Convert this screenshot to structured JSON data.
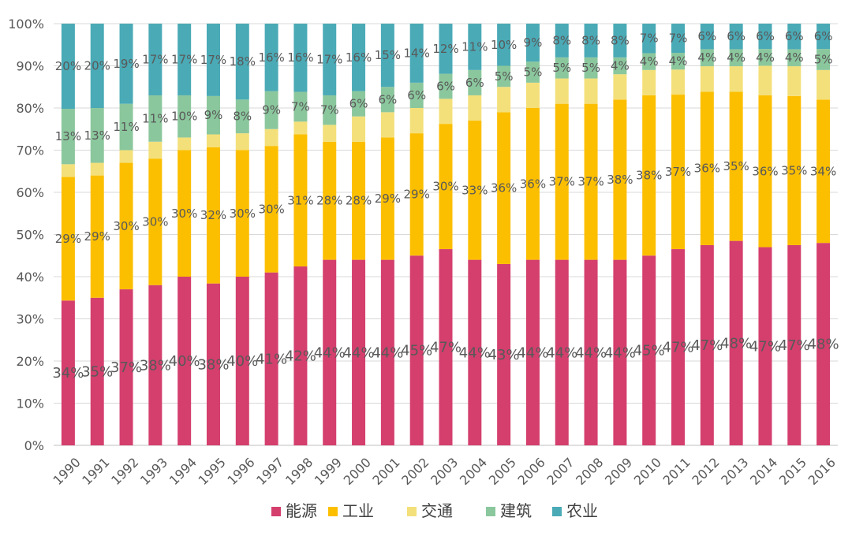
{
  "chart_data": {
    "type": "bar",
    "stacked": true,
    "percent_stacked": true,
    "categories": [
      "1990",
      "1991",
      "1992",
      "1993",
      "1994",
      "1995",
      "1996",
      "1997",
      "1998",
      "1999",
      "2000",
      "2001",
      "2002",
      "2003",
      "2004",
      "2005",
      "2006",
      "2007",
      "2008",
      "2009",
      "2010",
      "2011",
      "2012",
      "2013",
      "2014",
      "2015",
      "2016"
    ],
    "series": [
      {
        "name": "能源",
        "color": "#d43f6e",
        "values": [
          34,
          35,
          37,
          38,
          40,
          38,
          40,
          41,
          42,
          44,
          44,
          44,
          45,
          47,
          44,
          43,
          44,
          44,
          44,
          44,
          45,
          47,
          47,
          48,
          47,
          47,
          48
        ],
        "labels": [
          "34%",
          "35%",
          "37%",
          "38%",
          "40%",
          "38%",
          "40%",
          "41%",
          "42%",
          "44%",
          "44%",
          "44%",
          "45%",
          "47%",
          "44%",
          "43%",
          "44%",
          "44%",
          "44%",
          "44%",
          "45%",
          "47%",
          "47%",
          "48%",
          "47%",
          "47%",
          "48%"
        ]
      },
      {
        "name": "工业",
        "color": "#fcbf00",
        "values": [
          29,
          29,
          30,
          30,
          30,
          32,
          30,
          30,
          31,
          28,
          28,
          29,
          29,
          30,
          33,
          36,
          36,
          37,
          37,
          38,
          38,
          37,
          36,
          35,
          36,
          35,
          34
        ],
        "labels": [
          "29%",
          "29%",
          "30%",
          "30%",
          "30%",
          "32%",
          "30%",
          "30%",
          "31%",
          "28%",
          "28%",
          "29%",
          "29%",
          "30%",
          "33%",
          "36%",
          "36%",
          "37%",
          "37%",
          "38%",
          "38%",
          "37%",
          "36%",
          "35%",
          "36%",
          "35%",
          "34%"
        ]
      },
      {
        "name": "交通",
        "color": "#f4e07a",
        "values": [
          3,
          3,
          3,
          4,
          3,
          3,
          4,
          4,
          3,
          4,
          6,
          6,
          6,
          6,
          6,
          6,
          6,
          6,
          6,
          6,
          6,
          6,
          6,
          6,
          7,
          7,
          7
        ],
        "labels": [
          "",
          "",
          "",
          "",
          "",
          "",
          "",
          "",
          "",
          "",
          "",
          "",
          "",
          "",
          "",
          "",
          "",
          "",
          "",
          "",
          "",
          "",
          "",
          "",
          "",
          "",
          ""
        ]
      },
      {
        "name": "建筑",
        "color": "#8bc79d",
        "values": [
          13,
          13,
          11,
          11,
          10,
          9,
          8,
          9,
          7,
          7,
          6,
          6,
          6,
          6,
          6,
          5,
          5,
          5,
          5,
          4,
          4,
          4,
          4,
          4,
          4,
          4,
          5
        ],
        "labels": [
          "13%",
          "13%",
          "11%",
          "11%",
          "10%",
          "9%",
          "8%",
          "9%",
          "7%",
          "7%",
          "6%",
          "6%",
          "6%",
          "6%",
          "6%",
          "5%",
          "5%",
          "5%",
          "5%",
          "4%",
          "4%",
          "4%",
          "4%",
          "4%",
          "4%",
          "4%",
          "5%"
        ]
      },
      {
        "name": "农业",
        "color": "#4aaab6",
        "values": [
          20,
          20,
          19,
          17,
          17,
          17,
          18,
          16,
          16,
          17,
          16,
          15,
          14,
          12,
          11,
          10,
          9,
          8,
          8,
          8,
          7,
          7,
          6,
          6,
          6,
          6,
          6
        ],
        "labels": [
          "20%",
          "20%",
          "19%",
          "17%",
          "17%",
          "17%",
          "18%",
          "16%",
          "16%",
          "17%",
          "16%",
          "15%",
          "14%",
          "12%",
          "11%",
          "10%",
          "9%",
          "8%",
          "8%",
          "8%",
          "7%",
          "7%",
          "6%",
          "6%",
          "6%",
          "6%",
          "6%"
        ]
      }
    ],
    "yticks": [
      "0%",
      "10%",
      "20%",
      "30%",
      "40%",
      "50%",
      "60%",
      "70%",
      "80%",
      "90%",
      "100%"
    ],
    "ylim": [
      0,
      100
    ],
    "grid": true,
    "legend_position": "bottom",
    "title": "",
    "xlabel": "",
    "ylabel": ""
  }
}
